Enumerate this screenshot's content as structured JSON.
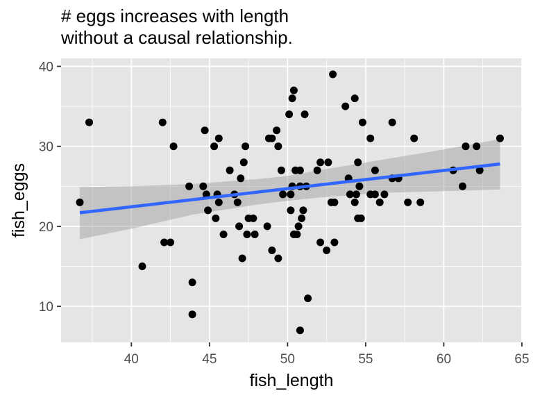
{
  "chart_data": {
    "type": "scatter",
    "title_lines": [
      "# eggs increases with length",
      "without a causal relationship."
    ],
    "xlabel": "fish_length",
    "ylabel": "fish_eggs",
    "xlim": [
      35.5,
      65
    ],
    "ylim": [
      5.5,
      41
    ],
    "xticks": [
      40,
      45,
      50,
      55,
      60,
      65
    ],
    "yticks": [
      10,
      20,
      30,
      40
    ],
    "grid": true,
    "colors": {
      "panel": "#e5e5e5",
      "grid": "#ffffff",
      "point": "#000000",
      "line": "#3366ff",
      "ribbon": "#999999"
    },
    "points": [
      [
        36.7,
        23
      ],
      [
        37.3,
        33
      ],
      [
        40.7,
        15
      ],
      [
        42.0,
        33
      ],
      [
        42.1,
        18
      ],
      [
        42.5,
        18
      ],
      [
        42.7,
        30
      ],
      [
        43.7,
        25
      ],
      [
        43.9,
        13
      ],
      [
        43.9,
        9
      ],
      [
        44.6,
        25
      ],
      [
        44.7,
        32
      ],
      [
        44.8,
        24
      ],
      [
        44.9,
        22
      ],
      [
        45.3,
        30
      ],
      [
        45.4,
        21
      ],
      [
        45.5,
        24
      ],
      [
        45.6,
        31
      ],
      [
        45.6,
        23
      ],
      [
        45.9,
        19
      ],
      [
        46.3,
        27
      ],
      [
        46.6,
        24
      ],
      [
        46.8,
        23
      ],
      [
        46.9,
        20
      ],
      [
        47.0,
        26
      ],
      [
        47.1,
        16
      ],
      [
        47.2,
        28
      ],
      [
        47.3,
        30
      ],
      [
        47.4,
        19
      ],
      [
        47.5,
        21
      ],
      [
        47.8,
        21
      ],
      [
        47.9,
        19
      ],
      [
        48.7,
        20
      ],
      [
        48.8,
        31
      ],
      [
        49.0,
        31
      ],
      [
        49.0,
        17
      ],
      [
        49.3,
        32
      ],
      [
        49.4,
        30
      ],
      [
        49.4,
        16
      ],
      [
        49.6,
        27
      ],
      [
        49.7,
        24
      ],
      [
        50.1,
        34
      ],
      [
        50.2,
        22
      ],
      [
        50.2,
        24
      ],
      [
        50.3,
        36
      ],
      [
        50.3,
        25
      ],
      [
        50.4,
        19
      ],
      [
        50.4,
        37
      ],
      [
        50.5,
        27
      ],
      [
        50.6,
        19
      ],
      [
        50.7,
        20
      ],
      [
        50.8,
        7
      ],
      [
        50.8,
        25
      ],
      [
        50.8,
        27
      ],
      [
        50.9,
        21
      ],
      [
        51.0,
        22
      ],
      [
        51.1,
        34
      ],
      [
        51.2,
        25
      ],
      [
        51.3,
        11
      ],
      [
        51.9,
        27
      ],
      [
        52.1,
        28
      ],
      [
        52.1,
        18
      ],
      [
        52.5,
        17
      ],
      [
        52.6,
        28
      ],
      [
        52.8,
        23
      ],
      [
        52.9,
        39
      ],
      [
        53.0,
        18
      ],
      [
        53.0,
        23
      ],
      [
        53.7,
        35
      ],
      [
        53.9,
        26
      ],
      [
        54.0,
        24
      ],
      [
        54.3,
        36
      ],
      [
        54.3,
        23
      ],
      [
        54.4,
        24
      ],
      [
        54.5,
        28
      ],
      [
        54.5,
        21
      ],
      [
        54.6,
        25
      ],
      [
        54.7,
        21
      ],
      [
        54.8,
        33
      ],
      [
        55.3,
        24
      ],
      [
        55.3,
        31
      ],
      [
        55.6,
        27
      ],
      [
        55.6,
        24
      ],
      [
        55.9,
        23
      ],
      [
        56.2,
        24
      ],
      [
        56.7,
        33
      ],
      [
        56.7,
        26
      ],
      [
        57.1,
        26
      ],
      [
        57.7,
        23
      ],
      [
        58.1,
        31
      ],
      [
        58.5,
        23
      ],
      [
        60.6,
        27
      ],
      [
        61.2,
        25
      ],
      [
        61.4,
        30
      ],
      [
        62.1,
        30
      ],
      [
        62.3,
        27
      ],
      [
        63.6,
        31
      ]
    ],
    "fit": {
      "x": [
        36.7,
        63.6
      ],
      "y": [
        21.7,
        27.8
      ]
    },
    "ribbon": {
      "x": [
        36.7,
        40,
        44,
        48,
        50,
        52,
        56,
        60,
        63.6
      ],
      "upper": [
        24.9,
        25.0,
        25.3,
        25.9,
        26.3,
        27.0,
        28.3,
        29.6,
        30.9
      ],
      "lower": [
        18.4,
        19.7,
        21.5,
        22.7,
        23.2,
        23.6,
        24.2,
        24.4,
        24.6
      ]
    }
  }
}
